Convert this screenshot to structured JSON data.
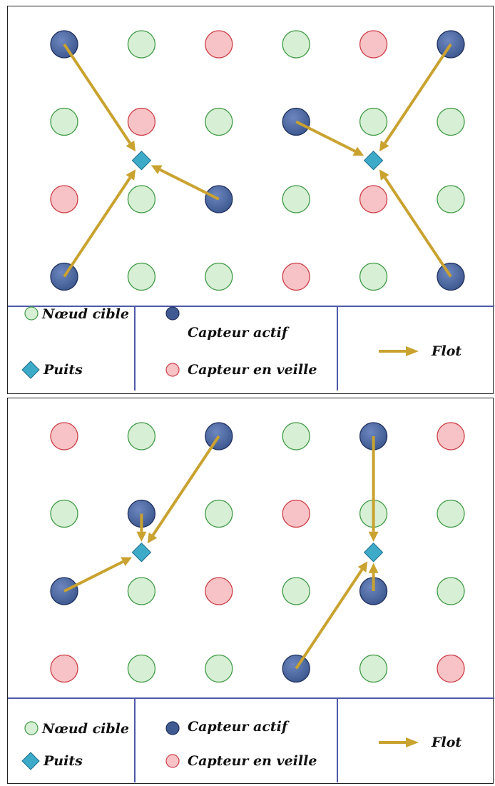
{
  "legend": {
    "target_label": "Nœud cible",
    "sink_label": "Puits",
    "active_label": "Capteur actif",
    "sleep_label": "Capteur en veille",
    "flow_label": "Flot"
  },
  "colors": {
    "target_fill": "#d7efd4",
    "target_stroke": "#3e9a45",
    "sleep_fill": "#f7c3c6",
    "sleep_stroke": "#cc3d46",
    "active_fill": "#3f5a91",
    "active_stroke": "#1f305e",
    "sink_fill": "#3daac8",
    "arrow": "#c9a22f",
    "divider": "#4e59a8"
  },
  "diagrams": [
    {
      "nodes": [
        [
          "active",
          "target",
          "sleep",
          "target",
          "sleep",
          "active"
        ],
        [
          "target",
          "sleep",
          "target",
          "active",
          "target",
          "target"
        ],
        [
          "sleep",
          "target",
          "active",
          "target",
          "sleep",
          "target"
        ],
        [
          "active",
          "target",
          "target",
          "sleep",
          "target",
          "active"
        ]
      ],
      "sinks": [
        [
          1,
          1.5
        ],
        [
          4,
          1.5
        ]
      ],
      "flows": [
        {
          "from": [
            0,
            0
          ],
          "sink": 0
        },
        {
          "from": [
            0,
            3
          ],
          "sink": 0
        },
        {
          "from": [
            2,
            2
          ],
          "sink": 0
        },
        {
          "from": [
            3,
            1
          ],
          "sink": 1
        },
        {
          "from": [
            5,
            0
          ],
          "sink": 1
        },
        {
          "from": [
            5,
            3
          ],
          "sink": 1
        }
      ]
    },
    {
      "nodes": [
        [
          "sleep",
          "target",
          "active",
          "target",
          "active",
          "sleep"
        ],
        [
          "target",
          "active",
          "target",
          "sleep",
          "target",
          "target"
        ],
        [
          "active",
          "target",
          "sleep",
          "target",
          "active",
          "target"
        ],
        [
          "sleep",
          "target",
          "target",
          "active",
          "target",
          "sleep"
        ]
      ],
      "sinks": [
        [
          1,
          1.5
        ],
        [
          4,
          1.5
        ]
      ],
      "flows": [
        {
          "from": [
            1,
            1
          ],
          "sink": 0
        },
        {
          "from": [
            0,
            2
          ],
          "sink": 0
        },
        {
          "from": [
            2,
            0
          ],
          "sink": 0
        },
        {
          "from": [
            4,
            0
          ],
          "sink": 1
        },
        {
          "from": [
            4,
            2
          ],
          "sink": 1
        },
        {
          "from": [
            3,
            3
          ],
          "sink": 1
        }
      ]
    }
  ]
}
